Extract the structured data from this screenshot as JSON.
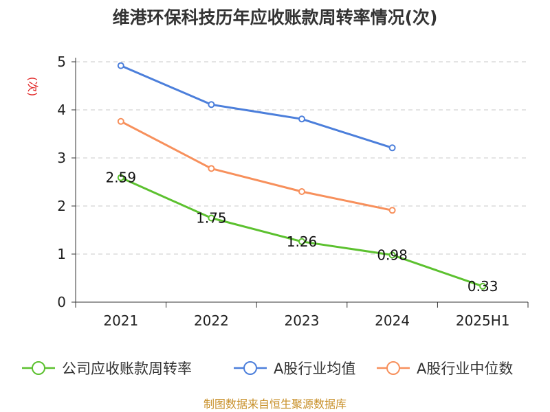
{
  "chart_data": {
    "type": "line",
    "title": "维港环保科技历年应收账款周转率情况(次)",
    "ylabel": "(次)",
    "xlabel": "",
    "categories": [
      "2021",
      "2022",
      "2023",
      "2024",
      "2025H1"
    ],
    "ylim": [
      0,
      5
    ],
    "yticks": [
      "0",
      "1",
      "2",
      "3",
      "4",
      "5"
    ],
    "grid": true,
    "legend_position": "bottom",
    "series": [
      {
        "name": "公司应收账款周转率",
        "color": "#5cc12f",
        "values": [
          2.59,
          1.75,
          1.26,
          0.98,
          0.33
        ],
        "labels": [
          "2.59",
          "1.75",
          "1.26",
          "0.98",
          "0.33"
        ]
      },
      {
        "name": "A股行业均值",
        "color": "#4c7fdb",
        "values": [
          4.92,
          4.11,
          3.81,
          3.21,
          null
        ]
      },
      {
        "name": "A股行业中位数",
        "color": "#f7905c",
        "values": [
          3.76,
          2.78,
          2.3,
          1.91,
          null
        ]
      }
    ],
    "source": "制图数据来自恒生聚源数据库"
  }
}
